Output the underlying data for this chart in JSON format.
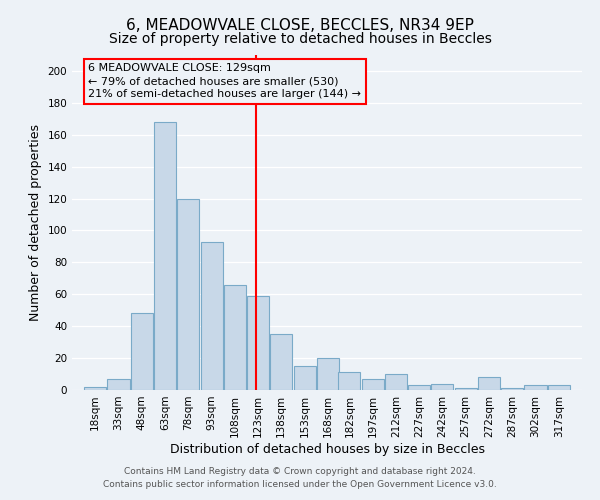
{
  "title": "6, MEADOWVALE CLOSE, BECCLES, NR34 9EP",
  "subtitle": "Size of property relative to detached houses in Beccles",
  "xlabel": "Distribution of detached houses by size in Beccles",
  "ylabel": "Number of detached properties",
  "bar_labels": [
    "18sqm",
    "33sqm",
    "48sqm",
    "63sqm",
    "78sqm",
    "93sqm",
    "108sqm",
    "123sqm",
    "138sqm",
    "153sqm",
    "168sqm",
    "182sqm",
    "197sqm",
    "212sqm",
    "227sqm",
    "242sqm",
    "257sqm",
    "272sqm",
    "287sqm",
    "302sqm",
    "317sqm"
  ],
  "bar_heights": [
    2,
    7,
    48,
    168,
    120,
    93,
    66,
    59,
    35,
    15,
    20,
    11,
    7,
    10,
    3,
    4,
    1,
    8,
    1,
    3,
    3
  ],
  "bin_edges": [
    18,
    33,
    48,
    63,
    78,
    93,
    108,
    123,
    138,
    153,
    168,
    182,
    197,
    212,
    227,
    242,
    257,
    272,
    287,
    302,
    317,
    332
  ],
  "bar_color": "#c8d8e8",
  "bar_edge_color": "#7aaac8",
  "vline_x": 129,
  "vline_color": "red",
  "ylim": [
    0,
    210
  ],
  "yticks": [
    0,
    20,
    40,
    60,
    80,
    100,
    120,
    140,
    160,
    180,
    200
  ],
  "annotation_title": "6 MEADOWVALE CLOSE: 129sqm",
  "annotation_line1": "← 79% of detached houses are smaller (530)",
  "annotation_line2": "21% of semi-detached houses are larger (144) →",
  "annotation_box_color": "red",
  "footer1": "Contains HM Land Registry data © Crown copyright and database right 2024.",
  "footer2": "Contains public sector information licensed under the Open Government Licence v3.0.",
  "title_fontsize": 11,
  "subtitle_fontsize": 10,
  "xlabel_fontsize": 9,
  "ylabel_fontsize": 9,
  "tick_fontsize": 7.5,
  "annot_fontsize": 8,
  "footer_fontsize": 6.5,
  "background_color": "#edf2f7"
}
